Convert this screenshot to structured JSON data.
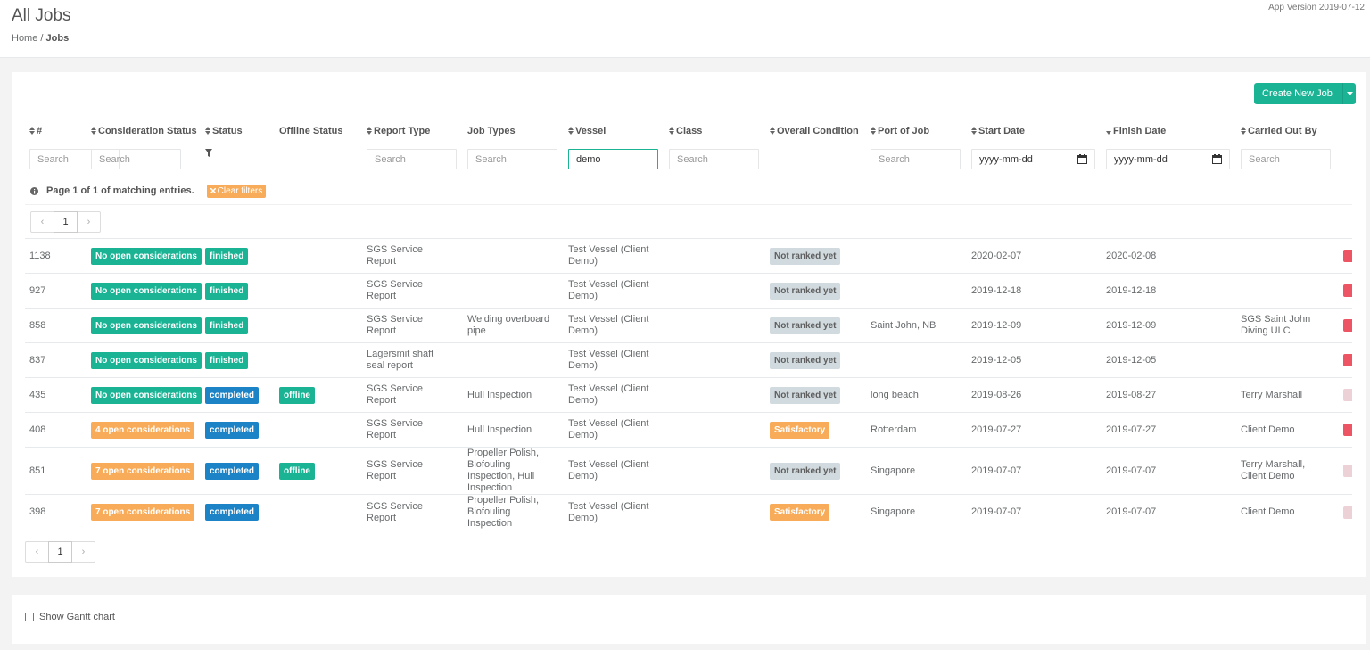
{
  "header": {
    "title": "All Jobs",
    "breadcrumb": {
      "home": "Home",
      "separator": "/",
      "current": "Jobs"
    },
    "app_version": "App Version 2019-07-12"
  },
  "toolbar": {
    "create_button": "Create New Job"
  },
  "columns": [
    {
      "label": "#",
      "sort": "both"
    },
    {
      "label": "Consideration Status",
      "sort": "both"
    },
    {
      "label": "Status",
      "sort": "both"
    },
    {
      "label": "Offline Status",
      "sort": null
    },
    {
      "label": "Report Type",
      "sort": "both"
    },
    {
      "label": "Job Types",
      "sort": null
    },
    {
      "label": "Vessel",
      "sort": "both"
    },
    {
      "label": "Class",
      "sort": "both"
    },
    {
      "label": "Overall Condition",
      "sort": "both"
    },
    {
      "label": "Port of Job",
      "sort": "both"
    },
    {
      "label": "Start Date",
      "sort": "both"
    },
    {
      "label": "Finish Date",
      "sort": "desc"
    },
    {
      "label": "Carried Out By",
      "sort": "both"
    }
  ],
  "filters": [
    {
      "placeholder": "Search"
    },
    {
      "placeholder": "Search"
    },
    {
      "filter_button": true
    },
    null,
    {
      "placeholder": "Search"
    },
    {
      "placeholder": "Search"
    },
    {
      "value": "demo"
    },
    {
      "placeholder": "Search"
    },
    null,
    {
      "placeholder": "Search"
    },
    {
      "placeholder": "yyyy-mm-dd",
      "date": true
    },
    {
      "placeholder": "yyyy-mm-dd",
      "date": true
    },
    {
      "placeholder": "Search"
    }
  ],
  "info": {
    "text": "Page 1 of 1 of matching entries.",
    "clear_filters": "Clear filters"
  },
  "pagination": {
    "current_page": "1"
  },
  "rows": [
    {
      "cells": [
        "1138",
        {
          "label": "No open considerations",
          "color": "#1ab394"
        },
        {
          "label": "finished",
          "color": "#1ab394"
        },
        null,
        "SGS Service Report",
        null,
        "Test Vessel (Client Demo)",
        null,
        {
          "label": "Not ranked yet",
          "color": "#d1dade"
        },
        null,
        "2020-02-07",
        "2020-02-08",
        null
      ],
      "action_color": "#ed5565"
    },
    {
      "cells": [
        "927",
        {
          "label": "No open considerations",
          "color": "#1ab394"
        },
        {
          "label": "finished",
          "color": "#1ab394"
        },
        null,
        "SGS Service Report",
        null,
        "Test Vessel (Client Demo)",
        null,
        {
          "label": "Not ranked yet",
          "color": "#d1dade"
        },
        null,
        "2019-12-18",
        "2019-12-18",
        null
      ],
      "action_color": "#ed5565"
    },
    {
      "cells": [
        "858",
        {
          "label": "No open considerations",
          "color": "#1ab394"
        },
        {
          "label": "finished",
          "color": "#1ab394"
        },
        null,
        "SGS Service Report",
        "Welding overboard pipe",
        "Test Vessel (Client Demo)",
        null,
        {
          "label": "Not ranked yet",
          "color": "#d1dade"
        },
        "Saint John, NB",
        "2019-12-09",
        "2019-12-09",
        "SGS Saint John Diving ULC"
      ],
      "action_color": "#ed5565"
    },
    {
      "cells": [
        "837",
        {
          "label": "No open considerations",
          "color": "#1ab394"
        },
        {
          "label": "finished",
          "color": "#1ab394"
        },
        null,
        "Lagersmit shaft seal report",
        null,
        "Test Vessel (Client Demo)",
        null,
        {
          "label": "Not ranked yet",
          "color": "#d1dade"
        },
        null,
        "2019-12-05",
        "2019-12-05",
        null
      ],
      "action_color": "#ed5565"
    },
    {
      "cells": [
        "435",
        {
          "label": "No open considerations",
          "color": "#1ab394"
        },
        {
          "label": "completed",
          "color": "#1c84c6"
        },
        {
          "label": "offline",
          "color": "#1ab394"
        },
        "SGS Service Report",
        "Hull Inspection",
        "Test Vessel (Client Demo)",
        null,
        {
          "label": "Not ranked yet",
          "color": "#d1dade"
        },
        "long beach",
        "2019-08-26",
        "2019-08-27",
        "Terry Marshall"
      ],
      "action_color": "#ecd2d6"
    },
    {
      "cells": [
        "408",
        {
          "label": "4 open considerations",
          "color": "#f8ac59"
        },
        {
          "label": "completed",
          "color": "#1c84c6"
        },
        null,
        "SGS Service Report",
        "Hull Inspection",
        "Test Vessel (Client Demo)",
        null,
        {
          "label": "Satisfactory",
          "color": "#f8ac59"
        },
        "Rotterdam",
        "2019-07-27",
        "2019-07-27",
        "Client Demo"
      ],
      "action_color": "#ed5565"
    },
    {
      "cells": [
        "851",
        {
          "label": "7 open considerations",
          "color": "#f8ac59"
        },
        {
          "label": "completed",
          "color": "#1c84c6"
        },
        {
          "label": "offline",
          "color": "#1ab394"
        },
        "SGS Service Report",
        "Propeller Polish, Biofouling Inspection, Hull Inspection",
        "Test Vessel (Client Demo)",
        null,
        {
          "label": "Not ranked yet",
          "color": "#d1dade"
        },
        "Singapore",
        "2019-07-07",
        "2019-07-07",
        "Terry Marshall, Client Demo"
      ],
      "action_color": "#ecd2d6"
    },
    {
      "cells": [
        "398",
        {
          "label": "7 open considerations",
          "color": "#f8ac59"
        },
        {
          "label": "completed",
          "color": "#1c84c6"
        },
        null,
        "SGS Service Report",
        "Propeller Polish, Biofouling Inspection",
        "Test Vessel (Client Demo)",
        null,
        {
          "label": "Satisfactory",
          "color": "#f8ac59"
        },
        "Singapore",
        "2019-07-07",
        "2019-07-07",
        "Client Demo"
      ],
      "action_color": "#ecd2d6"
    }
  ],
  "footer": {
    "gantt_label": "Show Gantt chart"
  }
}
